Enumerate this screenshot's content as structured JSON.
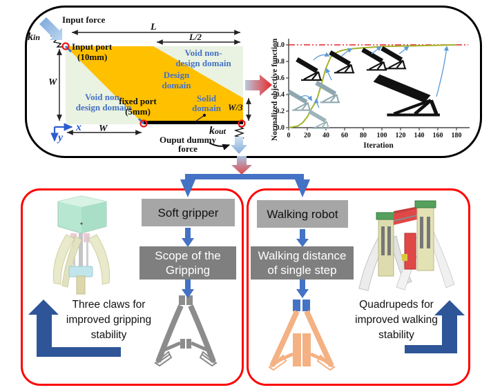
{
  "colors": {
    "accent_blue": "#4472c4",
    "dark_blue_arrow": "#2e5597",
    "red_panel_border": "#fe0000",
    "design_domain_orange": "#ffc000",
    "void_domain_green": "#eaf2e2",
    "box_gray_light": "#a6a6a6",
    "box_gray_dark": "#7f7f7f",
    "gripper_silhouette_gray": "#8c8c8c",
    "robot_silhouette_orange": "#f4b183",
    "curve_green": "#a4b327",
    "reference_line_red": "#e82222",
    "annotation_arrow_blue": "#5b9bd5"
  },
  "diagram": {
    "input_force": "Input force",
    "k_in_main": "k",
    "k_in_sub": "in",
    "input_port_line1": "Input port",
    "input_port_line2": "(10mm)",
    "dim_L": "L",
    "dim_L_half": "L/2",
    "dim_W": "W",
    "dim_W_third": "W/3",
    "dim_W_bottom": "W",
    "void_top_line1": "Void non-",
    "void_top_line2": "design domain",
    "design_line1": "Design",
    "design_line2": "domain",
    "void_bottom_line1": "Void non-",
    "void_bottom_line2": "design domain",
    "fixed_port_line1": "fixed port",
    "fixed_port_line2": "(5mm)",
    "solid_line1": "Solid",
    "solid_line2": "domain",
    "k_out_main": "k",
    "k_out_sub": "out",
    "output_line1": "Ouput dummy",
    "output_line2": "force",
    "axis_x": "x",
    "axis_y": "y"
  },
  "chart_data": {
    "type": "line",
    "xlabel": "Iteration",
    "ylabel": "Normalized objective function",
    "xlim": [
      0,
      190
    ],
    "ylim": [
      0,
      1.08
    ],
    "xticks": [
      0,
      20,
      40,
      60,
      80,
      100,
      120,
      140,
      160,
      180
    ],
    "ytick_labels": [
      "0.0",
      "0.2",
      "0.4",
      "0.6",
      "0.8",
      "1.0"
    ],
    "grid": false,
    "reference_line_y": 1.0,
    "series": [
      {
        "name": "Normalized objective function",
        "color": "#a4b327",
        "x": [
          0,
          5,
          10,
          15,
          20,
          25,
          30,
          35,
          40,
          45,
          50,
          55,
          60,
          70,
          80,
          90,
          100,
          120,
          140,
          160,
          170,
          180
        ],
        "y": [
          0,
          0.01,
          0.02,
          0.06,
          0.13,
          0.24,
          0.33,
          0.52,
          0.72,
          0.85,
          0.9,
          0.925,
          0.94,
          0.955,
          0.965,
          0.972,
          0.98,
          0.985,
          0.99,
          0.995,
          0.998,
          1.0
        ]
      }
    ],
    "annotations": {
      "inset_count": 8,
      "inset_description": "intermediate topology snapshots linked to the curve by blue arrows"
    }
  },
  "flow_left": {
    "step1": "Soft gripper",
    "step2_line1": "Scope of the",
    "step2_line2": "Gripping",
    "caption_line1": "Three claws for",
    "caption_line2": "improved gripping",
    "caption_line3": "stability"
  },
  "flow_right": {
    "step1": "Walking robot",
    "step2_line1": "Walking distance",
    "step2_line2": "of single step",
    "caption_line1": "Quadrupeds for",
    "caption_line2": "improved walking",
    "caption_line3": "stability"
  }
}
